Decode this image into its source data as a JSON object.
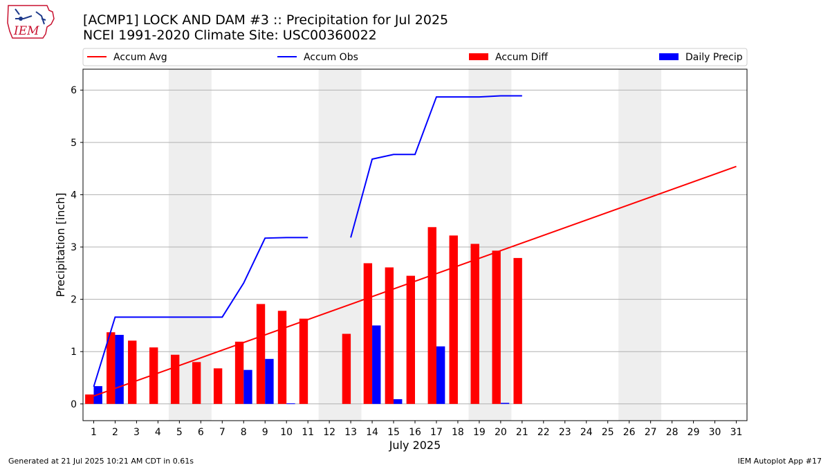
{
  "header": {
    "title_line1": "[ACMP1] LOCK AND DAM #3 :: Precipitation for Jul 2025",
    "title_line2": "NCEI 1991-2020 Climate Site: USC00360022",
    "logo_text": "IEM"
  },
  "footer": {
    "left": "Generated at 21 Jul 2025 10:21 AM CDT in 0.61s",
    "right": "IEM Autoplot App #17"
  },
  "colors": {
    "accum_avg": "#ff0000",
    "accum_obs": "#0000ff",
    "accum_diff": "#ff0000",
    "daily_precip": "#0000ff",
    "weekend_shade": "#eeeeee",
    "grid": "#b0b0b0"
  },
  "chart_data": {
    "type": "bar",
    "xlabel": "July 2025",
    "ylabel": "Precipitation [inch]",
    "xlim": [
      0.5,
      31.5
    ],
    "ylim": [
      -0.32,
      6.4
    ],
    "yticks": [
      0,
      1,
      2,
      3,
      4,
      5,
      6
    ],
    "grid": "horizontal",
    "legend_position": "top",
    "days": [
      1,
      2,
      3,
      4,
      5,
      6,
      7,
      8,
      9,
      10,
      11,
      12,
      13,
      14,
      15,
      16,
      17,
      18,
      19,
      20,
      21,
      22,
      23,
      24,
      25,
      26,
      27,
      28,
      29,
      30,
      31
    ],
    "weekend_shading": [
      [
        5,
        6
      ],
      [
        12,
        13
      ],
      [
        19,
        20
      ],
      [
        26,
        27
      ]
    ],
    "series": [
      {
        "name": "Accum Avg",
        "kind": "line",
        "x": [
          1,
          31
        ],
        "values": [
          0.15,
          4.54
        ]
      },
      {
        "name": "Accum Obs",
        "kind": "line",
        "segments": [
          {
            "x": [
              1,
              2,
              3,
              4,
              5,
              6,
              7,
              8,
              9,
              10,
              11
            ],
            "values": [
              0.33,
              1.66,
              1.66,
              1.66,
              1.66,
              1.66,
              1.66,
              2.31,
              3.17,
              3.18,
              3.18
            ]
          },
          {
            "x": [
              13,
              14,
              15,
              16,
              17,
              18,
              19,
              20,
              21
            ],
            "values": [
              3.18,
              4.68,
              4.77,
              4.77,
              5.87,
              5.87,
              5.87,
              5.89,
              5.89
            ]
          }
        ]
      },
      {
        "name": "Accum Diff",
        "kind": "bar",
        "x": [
          1,
          2,
          3,
          4,
          5,
          6,
          7,
          8,
          9,
          10,
          11,
          12,
          13,
          14,
          15,
          16,
          17,
          18,
          19,
          20,
          21
        ],
        "values": [
          0.18,
          1.37,
          1.21,
          1.08,
          0.94,
          0.8,
          0.68,
          1.19,
          1.91,
          1.78,
          1.63,
          0,
          1.34,
          2.69,
          2.61,
          2.45,
          3.38,
          3.22,
          3.06,
          2.93,
          2.79
        ]
      },
      {
        "name": "Daily Precip",
        "kind": "bar",
        "x": [
          1,
          2,
          3,
          4,
          5,
          6,
          7,
          8,
          9,
          10,
          11,
          12,
          13,
          14,
          15,
          16,
          17,
          18,
          19,
          20,
          21
        ],
        "values": [
          0.34,
          1.32,
          0,
          0,
          0,
          0,
          0,
          0.65,
          0.86,
          0.01,
          0,
          0,
          0,
          1.5,
          0.09,
          0,
          1.1,
          0,
          0,
          0.02,
          0
        ]
      }
    ]
  }
}
